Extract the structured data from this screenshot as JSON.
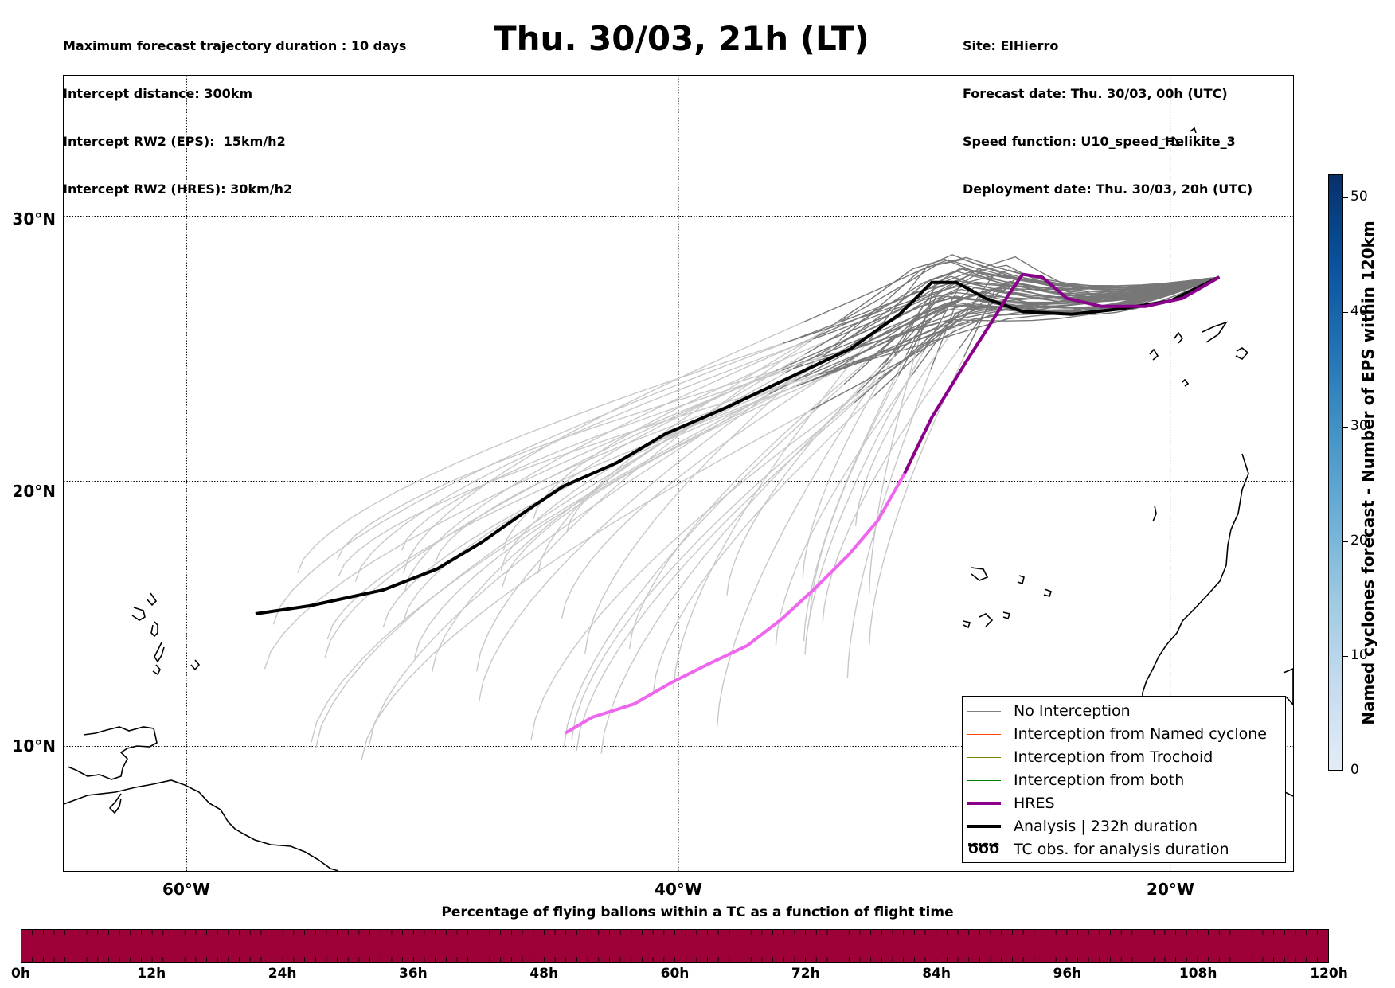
{
  "header": {
    "left_lines": [
      "Maximum forecast trajectory duration : 10 days",
      "Intercept distance: 300km",
      "Intercept RW2 (EPS):  15km/h2",
      "Intercept RW2 (HRES): 30km/h2"
    ],
    "title": "Thu. 30/03, 21h (LT)",
    "right_lines": [
      "Site: ElHierro",
      "Forecast date: Thu. 30/03, 00h (UTC)",
      "Speed function: U10_speed_Helikite_3",
      "Deployment date: Thu. 30/03, 20h (UTC)"
    ]
  },
  "map": {
    "lat_labels": [
      "30°N",
      "20°N",
      "10°N"
    ],
    "lon_labels": [
      "60°W",
      "40°W",
      "20°W"
    ],
    "lon_range": [
      -65,
      -15
    ],
    "lat_range": [
      5.3,
      35.3
    ],
    "gridlines": "dotted",
    "deployment_site": {
      "lon": -18,
      "lat": 27.7
    }
  },
  "legend": {
    "position": "lower right",
    "items": [
      {
        "label": "No Interception",
        "color": "#808080",
        "style": "thin"
      },
      {
        "label": "Interception from Named cyclone",
        "color": "#ff4500",
        "style": "thin"
      },
      {
        "label": "Interception from Trochoid",
        "color": "#808000",
        "style": "thin"
      },
      {
        "label": "Interception from both",
        "color": "#008000",
        "style": "thin"
      },
      {
        "label": "HRES",
        "color": "#8b008b",
        "style": "thick"
      },
      {
        "label": "Analysis | 232h duration",
        "color": "#000000",
        "style": "thick"
      },
      {
        "label": "TC obs. for analysis duration",
        "color": "#000000",
        "style": "symbol",
        "symbol": "ԾԾԾ"
      }
    ]
  },
  "colorbar": {
    "title": "Named cyclones forecast - Number of EPS within 120km",
    "ticks": [
      "0",
      "10",
      "20",
      "30",
      "40",
      "50"
    ],
    "range": [
      0,
      52
    ]
  },
  "time_bar": {
    "title": "Percentage of flying ballons within a TC as a function of flight time",
    "color": "#9e003a",
    "labels": [
      "0h",
      "12h",
      "24h",
      "36h",
      "48h",
      "60h",
      "72h",
      "84h",
      "96h",
      "108h",
      "120h"
    ]
  },
  "chart_data": {
    "type": "map-trajectories",
    "analysis_track": [
      [
        -57.2,
        15.0
      ],
      [
        -55,
        15.3
      ],
      [
        -52,
        15.9
      ],
      [
        -49.8,
        16.7
      ],
      [
        -48,
        17.7
      ],
      [
        -46,
        19.0
      ],
      [
        -44.7,
        19.8
      ],
      [
        -42.5,
        20.7
      ],
      [
        -40.5,
        21.8
      ],
      [
        -38,
        22.8
      ],
      [
        -35.5,
        23.9
      ],
      [
        -33,
        25.0
      ],
      [
        -31,
        26.3
      ],
      [
        -29.7,
        27.5
      ],
      [
        -28.7,
        27.5
      ],
      [
        -27.5,
        26.9
      ],
      [
        -26,
        26.4
      ],
      [
        -24,
        26.3
      ],
      [
        -22,
        26.5
      ],
      [
        -20,
        26.8
      ],
      [
        -18,
        27.7
      ]
    ],
    "hres_track": [
      [
        -44.6,
        10.5
      ],
      [
        -43.5,
        11.1
      ],
      [
        -41.8,
        11.6
      ],
      [
        -40.3,
        12.4
      ],
      [
        -38.8,
        13.1
      ],
      [
        -37.2,
        13.8
      ],
      [
        -35.8,
        14.8
      ],
      [
        -34.4,
        16.0
      ],
      [
        -33.1,
        17.2
      ],
      [
        -31.9,
        18.5
      ],
      [
        -30.8,
        20.3
      ],
      [
        -29.7,
        22.4
      ],
      [
        -28.3,
        24.5
      ],
      [
        -27.2,
        26.1
      ],
      [
        -26.6,
        27.0
      ],
      [
        -26.0,
        27.8
      ],
      [
        -25.2,
        27.7
      ],
      [
        -24.2,
        26.9
      ],
      [
        -22.8,
        26.6
      ],
      [
        -21.0,
        26.6
      ],
      [
        -19.5,
        26.9
      ],
      [
        -18.0,
        27.7
      ]
    ],
    "eps_members": 50
  }
}
